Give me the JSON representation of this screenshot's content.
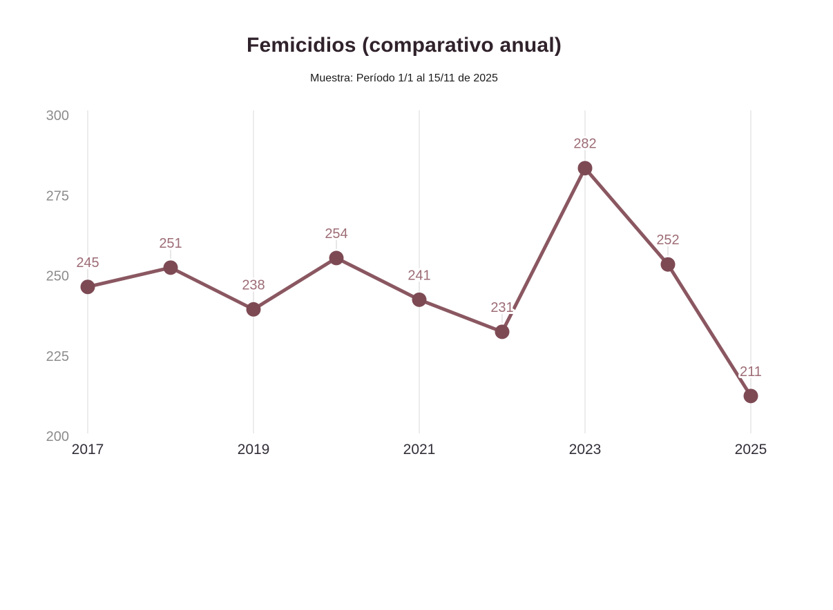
{
  "header": {
    "title": "Femicidios (comparativo anual)",
    "subtitle": "Muestra: Período 1/1 al 15/11 de 2025"
  },
  "chart_data": {
    "type": "line",
    "title": "Femicidios (comparativo anual)",
    "subtitle": "Muestra: Período 1/1 al 15/11 de 2025",
    "series_name": "Femicidios",
    "x": [
      2017,
      2018,
      2019,
      2020,
      2021,
      2022,
      2023,
      2024,
      2025
    ],
    "values": [
      245,
      251,
      238,
      254,
      241,
      231,
      282,
      252,
      211
    ],
    "point_labels": [
      "245",
      "251",
      "238",
      "254",
      "241",
      "231",
      "282",
      "252",
      "211"
    ],
    "ylim": [
      200,
      300
    ],
    "yticks": [
      200,
      225,
      250,
      275,
      300
    ],
    "xticks": [
      2017,
      2019,
      2021,
      2023,
      2025
    ],
    "grid": "vertical-gridlines-only",
    "legend": "none",
    "show_point_labels": true,
    "colors": {
      "background": "#ffffff",
      "line": "#8a5761",
      "marker": "#7d4a54",
      "point_label": "#9d6c76",
      "y_tick_label": "#8c8c8c",
      "x_tick_label": "#332e38",
      "gridline": "#d8d8d8",
      "label_connector": "#cfcfcf",
      "title": "#30222b",
      "subtitle": "#1a1a1a"
    }
  }
}
